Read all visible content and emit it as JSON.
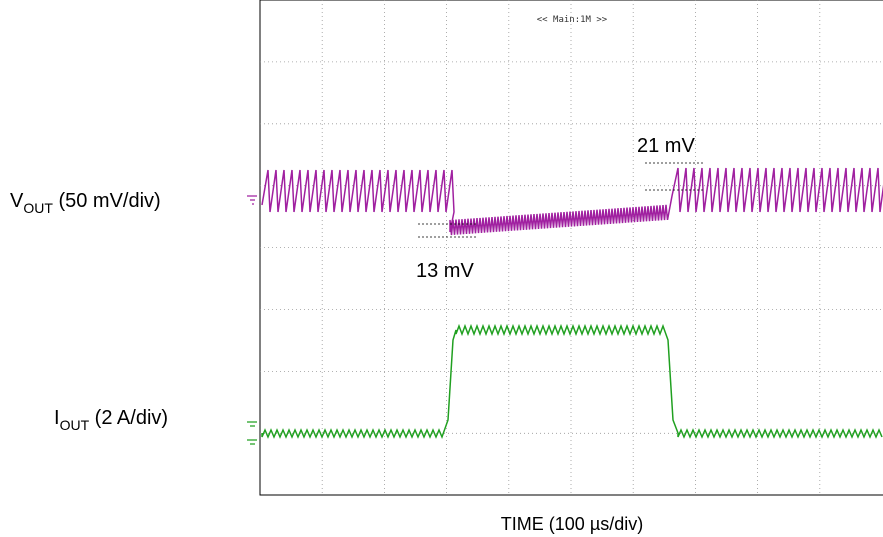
{
  "scope": {
    "header": "<< Main:1M >>",
    "channels": [
      {
        "symbol": "V",
        "subscript": "OUT",
        "scale": " (50 mV/div)"
      },
      {
        "symbol": "I",
        "subscript": "OUT",
        "scale": " (2 A/div)"
      }
    ],
    "annotations": [
      "21 mV",
      "13 mV"
    ],
    "x_axis_label": "TIME (100 µs/div)"
  }
}
